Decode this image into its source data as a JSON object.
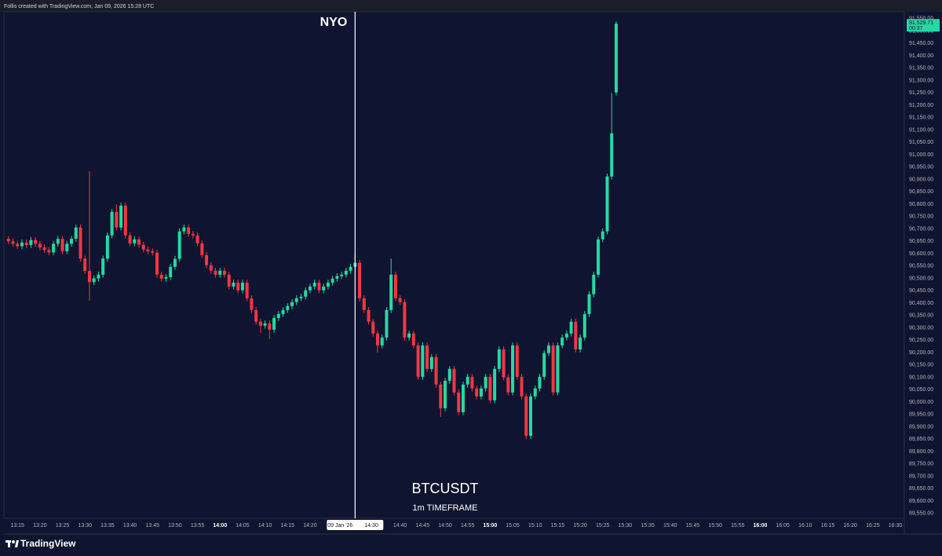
{
  "header": "Follis created with TradingView.com, Jan 09, 2026 15:28 UTC",
  "logo": "TradingView",
  "chart_data": {
    "type": "candlestick",
    "symbol": "BTCUSDT",
    "subtitle": "1m TIMEFRAME",
    "annotation": "NYO",
    "annotation_time": "14:30",
    "crosshair_date": "Fri 09 Jan '26",
    "crosshair_time": "14:30",
    "last_price_label": "91,529.71",
    "countdown": "00:37",
    "up_color": "#26d9a3",
    "down_color": "#f23645",
    "grid": false,
    "x": [
      "13:13",
      "13:14",
      "13:15",
      "13:16",
      "13:17",
      "13:18",
      "13:19",
      "13:20",
      "13:21",
      "13:22",
      "13:23",
      "13:24",
      "13:25",
      "13:26",
      "13:27",
      "13:28",
      "13:29",
      "13:30",
      "13:31",
      "13:32",
      "13:33",
      "13:34",
      "13:35",
      "13:36",
      "13:37",
      "13:38",
      "13:39",
      "13:40",
      "13:41",
      "13:42",
      "13:43",
      "13:44",
      "13:45",
      "13:46",
      "13:47",
      "13:48",
      "13:49",
      "13:50",
      "13:51",
      "13:52",
      "13:53",
      "13:54",
      "13:55",
      "13:56",
      "13:57",
      "13:58",
      "13:59",
      "14:00",
      "14:01",
      "14:02",
      "14:03",
      "14:04",
      "14:05",
      "14:06",
      "14:07",
      "14:08",
      "14:09",
      "14:10",
      "14:11",
      "14:12",
      "14:13",
      "14:14",
      "14:15",
      "14:16",
      "14:17",
      "14:18",
      "14:19",
      "14:20",
      "14:21",
      "14:22",
      "14:23",
      "14:24",
      "14:25",
      "14:26",
      "14:27",
      "14:28",
      "14:29",
      "14:30",
      "14:31",
      "14:32",
      "14:33",
      "14:34",
      "14:35",
      "14:36",
      "14:37",
      "14:38",
      "14:39",
      "14:40",
      "14:41",
      "14:42",
      "14:43",
      "14:44",
      "14:45",
      "14:46",
      "14:47",
      "14:48",
      "14:49",
      "14:50",
      "14:51",
      "14:52",
      "14:53",
      "14:54",
      "14:55",
      "14:56",
      "14:57",
      "14:58",
      "14:59",
      "15:00",
      "15:01",
      "15:02",
      "15:03",
      "15:04",
      "15:05",
      "15:06",
      "15:07",
      "15:08",
      "15:09",
      "15:10",
      "15:11",
      "15:12",
      "15:13",
      "15:14",
      "15:15",
      "15:16",
      "15:17",
      "15:18",
      "15:19",
      "15:20",
      "15:21",
      "15:22",
      "15:23",
      "15:24",
      "15:25",
      "15:26",
      "15:27",
      "15:28"
    ],
    "open": [
      90660,
      90650,
      90640,
      90630,
      90645,
      90635,
      90655,
      90640,
      90625,
      90615,
      90605,
      90640,
      90660,
      90610,
      90640,
      90660,
      90706,
      90580,
      90530,
      90485,
      90500,
      90515,
      90580,
      90674,
      90769,
      90706,
      90794,
      90674,
      90642,
      90658,
      90636,
      90617,
      90610,
      90604,
      90515,
      90499,
      90505,
      90547,
      90579,
      90690,
      90706,
      90680,
      90674,
      90642,
      90594,
      90553,
      90531,
      90515,
      90531,
      90515,
      90467,
      90483,
      90452,
      90483,
      90420,
      90372,
      90325,
      90309,
      90318,
      90293,
      90340,
      90356,
      90372,
      90388,
      90404,
      90420,
      90426,
      90452,
      90467,
      90483,
      90452,
      90467,
      90483,
      90499,
      90509,
      90515,
      90531,
      90547,
      90563,
      90420,
      90372,
      90325,
      90277,
      90229,
      90261,
      90372,
      90515,
      90420,
      90404,
      90261,
      90277,
      90229,
      90102,
      90229,
      90134,
      90182,
      90071,
      89975,
      90086,
      90134,
      90039,
      89959,
      90071,
      90102,
      90055,
      90023,
      90055,
      90102,
      90007,
      90134,
      90213,
      90100,
      90039,
      90229,
      90102,
      90023,
      89864,
      90023,
      90055,
      90102,
      90198,
      90229,
      90039,
      90229,
      90261,
      90277,
      90325,
      90213,
      90261,
      90356,
      90436,
      90515,
      90658,
      90690,
      90912,
      91252
    ],
    "high": [
      90672,
      90662,
      90652,
      90657,
      90657,
      90667,
      90667,
      90652,
      90637,
      90627,
      90652,
      90672,
      90672,
      90652,
      90672,
      90718,
      90718,
      90592,
      90934,
      90512,
      90527,
      90592,
      90686,
      90781,
      90800,
      90806,
      90806,
      90686,
      90670,
      90670,
      90648,
      90629,
      90622,
      90616,
      90527,
      90517,
      90559,
      90591,
      90702,
      90718,
      90718,
      90692,
      90686,
      90654,
      90606,
      90565,
      90543,
      90543,
      90543,
      90527,
      90495,
      90495,
      90495,
      90495,
      90432,
      90384,
      90337,
      90330,
      90330,
      90352,
      90368,
      90384,
      90400,
      90416,
      90432,
      90438,
      90464,
      90479,
      90495,
      90495,
      90479,
      90495,
      90511,
      90521,
      90527,
      90543,
      90559,
      90600,
      90575,
      90432,
      90384,
      90337,
      90289,
      90273,
      90384,
      90580,
      90527,
      90432,
      90416,
      90289,
      90289,
      90241,
      90241,
      90241,
      90194,
      90194,
      90083,
      90098,
      90146,
      90146,
      90051,
      90083,
      90114,
      90114,
      90067,
      90067,
      90114,
      90114,
      90146,
      90225,
      90225,
      90112,
      90241,
      90241,
      90114,
      90035,
      90035,
      90067,
      90114,
      90210,
      90241,
      90241,
      90241,
      90273,
      90289,
      90337,
      90337,
      90273,
      90368,
      90448,
      90527,
      90670,
      90702,
      90924,
      91250,
      91540
    ],
    "low": [
      90638,
      90628,
      90618,
      90618,
      90623,
      90623,
      90628,
      90613,
      90603,
      90593,
      90593,
      90628,
      90598,
      90598,
      90628,
      90648,
      90568,
      90518,
      90410,
      90473,
      90488,
      90503,
      90568,
      90662,
      90694,
      90694,
      90662,
      90630,
      90630,
      90624,
      90605,
      90598,
      90592,
      90503,
      90487,
      90487,
      90493,
      90535,
      90567,
      90678,
      90668,
      90662,
      90630,
      90582,
      90541,
      90519,
      90503,
      90503,
      90503,
      90455,
      90455,
      90440,
      90440,
      90408,
      90360,
      90313,
      90280,
      90297,
      90255,
      90281,
      90328,
      90344,
      90360,
      90376,
      90392,
      90408,
      90414,
      90440,
      90455,
      90440,
      90440,
      90455,
      90471,
      90487,
      90497,
      90503,
      90519,
      90535,
      90408,
      90360,
      90313,
      90265,
      90200,
      90217,
      90249,
      90360,
      90408,
      90392,
      90249,
      90249,
      90217,
      90090,
      90090,
      90122,
      90122,
      90059,
      89940,
      89963,
      90074,
      90027,
      89947,
      89947,
      90059,
      90043,
      90011,
      90011,
      90043,
      89995,
      89995,
      90122,
      90088,
      90027,
      90027,
      90090,
      90011,
      89850,
      89852,
      90011,
      90043,
      90090,
      90186,
      90027,
      90027,
      90217,
      90249,
      90265,
      90201,
      90201,
      90249,
      90344,
      90424,
      90503,
      90646,
      90678,
      90900,
      91240
    ],
    "close": [
      90650,
      90640,
      90630,
      90645,
      90635,
      90655,
      90640,
      90625,
      90615,
      90605,
      90640,
      90660,
      90610,
      90640,
      90660,
      90706,
      90580,
      90530,
      90485,
      90500,
      90515,
      90580,
      90674,
      90769,
      90706,
      90794,
      90674,
      90642,
      90658,
      90636,
      90617,
      90610,
      90604,
      90515,
      90499,
      90505,
      90547,
      90579,
      90690,
      90706,
      90680,
      90674,
      90642,
      90594,
      90553,
      90531,
      90515,
      90531,
      90515,
      90467,
      90483,
      90452,
      90483,
      90420,
      90372,
      90325,
      90309,
      90318,
      90293,
      90340,
      90356,
      90372,
      90388,
      90404,
      90420,
      90426,
      90452,
      90467,
      90483,
      90452,
      90467,
      90483,
      90499,
      90509,
      90515,
      90531,
      90547,
      90563,
      90420,
      90372,
      90325,
      90277,
      90229,
      90261,
      90372,
      90515,
      90420,
      90404,
      90261,
      90277,
      90229,
      90102,
      90229,
      90134,
      90182,
      90071,
      89975,
      90086,
      90134,
      90039,
      89959,
      90071,
      90102,
      90055,
      90023,
      90055,
      90102,
      90007,
      90134,
      90213,
      90100,
      90039,
      90229,
      90102,
      90023,
      89864,
      90023,
      90055,
      90102,
      90198,
      90229,
      90039,
      90229,
      90261,
      90277,
      90325,
      90213,
      90261,
      90356,
      90436,
      90515,
      90658,
      90690,
      90912,
      91087,
      91529.71
    ],
    "xlim": [
      "13:12",
      "16:32"
    ],
    "xticks": [
      "13:15",
      "13:20",
      "13:25",
      "13:30",
      "13:35",
      "13:40",
      "13:45",
      "13:50",
      "13:55",
      "14:00",
      "14:05",
      "14:10",
      "14:15",
      "14:20",
      "14:40",
      "14:45",
      "14:50",
      "14:55",
      "15:00",
      "15:05",
      "15:10",
      "15:15",
      "15:20",
      "15:25",
      "15:30",
      "15:35",
      "15:40",
      "15:45",
      "15:50",
      "15:55",
      "16:00",
      "16:05",
      "16:10",
      "16:15",
      "16:20",
      "16:25",
      "16:30"
    ],
    "ylim": [
      89530,
      91578
    ],
    "yticks": [
      {
        "value": 89550,
        "label": "89,550.00"
      },
      {
        "value": 89600,
        "label": "89,600.00"
      },
      {
        "value": 89650,
        "label": "89,650.00"
      },
      {
        "value": 89700,
        "label": "89,700.00"
      },
      {
        "value": 89750,
        "label": "89,750.00"
      },
      {
        "value": 89800,
        "label": "89,800.00"
      },
      {
        "value": 89850,
        "label": "89,850.00"
      },
      {
        "value": 89900,
        "label": "89,900.00"
      },
      {
        "value": 89950,
        "label": "89,950.00"
      },
      {
        "value": 90000,
        "label": "90,000.00"
      },
      {
        "value": 90050,
        "label": "90,050.00"
      },
      {
        "value": 90100,
        "label": "90,100.00"
      },
      {
        "value": 90150,
        "label": "90,150.00"
      },
      {
        "value": 90200,
        "label": "90,200.00"
      },
      {
        "value": 90250,
        "label": "90,250.00"
      },
      {
        "value": 90300,
        "label": "90,300.00"
      },
      {
        "value": 90350,
        "label": "90,350.00"
      },
      {
        "value": 90400,
        "label": "90,400.00"
      },
      {
        "value": 90450,
        "label": "90,450.00"
      },
      {
        "value": 90500,
        "label": "90,500.00"
      },
      {
        "value": 90550,
        "label": "90,550.00"
      },
      {
        "value": 90600,
        "label": "90,600.00"
      },
      {
        "value": 90650,
        "label": "90,650.00"
      },
      {
        "value": 90700,
        "label": "90,700.00"
      },
      {
        "value": 90750,
        "label": "90,750.00"
      },
      {
        "value": 90800,
        "label": "90,800.00"
      },
      {
        "value": 90850,
        "label": "90,850.00"
      },
      {
        "value": 90900,
        "label": "90,900.00"
      },
      {
        "value": 90950,
        "label": "90,950.00"
      },
      {
        "value": 91000,
        "label": "91,000.00"
      },
      {
        "value": 91050,
        "label": "91,050.00"
      },
      {
        "value": 91100,
        "label": "91,100.00"
      },
      {
        "value": 91150,
        "label": "91,150.00"
      },
      {
        "value": 91200,
        "label": "91,200.00"
      },
      {
        "value": 91250,
        "label": "91,250.00"
      },
      {
        "value": 91300,
        "label": "91,300.00"
      },
      {
        "value": 91350,
        "label": "91,350.00"
      },
      {
        "value": 91400,
        "label": "91,400.00"
      },
      {
        "value": 91450,
        "label": "91,450.00"
      },
      {
        "value": 91500,
        "label": "91,500.00"
      },
      {
        "value": 91550,
        "label": "91,550.00"
      }
    ]
  }
}
